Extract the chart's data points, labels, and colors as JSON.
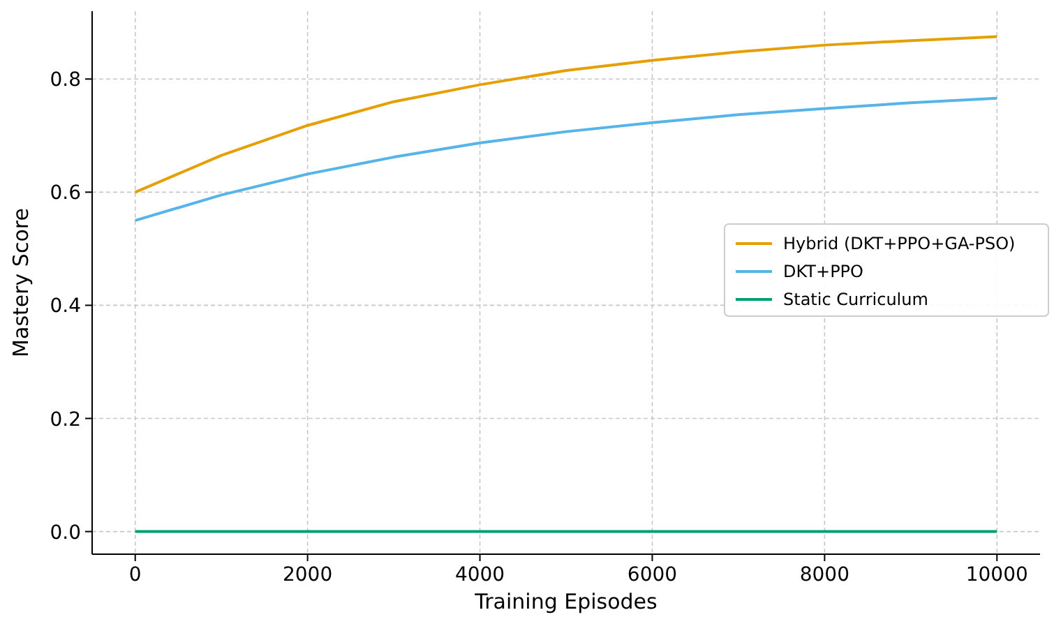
{
  "chart_data": {
    "type": "line",
    "xlabel": "Training Episodes",
    "ylabel": "Mastery Score",
    "x": [
      0,
      1000,
      2000,
      3000,
      4000,
      5000,
      6000,
      7000,
      8000,
      9000,
      10000
    ],
    "series": [
      {
        "name": "Hybrid (DKT+PPO+GA-PSO)",
        "color": "#e69f00",
        "values": [
          0.6,
          0.665,
          0.718,
          0.76,
          0.79,
          0.815,
          0.833,
          0.848,
          0.86,
          0.868,
          0.875
        ]
      },
      {
        "name": "DKT+PPO",
        "color": "#56b4e9",
        "values": [
          0.55,
          0.595,
          0.632,
          0.662,
          0.687,
          0.707,
          0.723,
          0.737,
          0.748,
          0.758,
          0.766
        ]
      },
      {
        "name": "Static Curriculum",
        "color": "#009e73",
        "values": [
          0,
          0,
          0,
          0,
          0,
          0,
          0,
          0,
          0,
          0,
          0
        ]
      }
    ],
    "xlim": [
      -500,
      10500
    ],
    "ylim": [
      -0.04,
      0.92
    ],
    "xticks": [
      0,
      2000,
      4000,
      6000,
      8000,
      10000
    ],
    "yticks": [
      {
        "value": 0,
        "label": "0.0"
      },
      {
        "value": 0.2,
        "label": "0.2"
      },
      {
        "value": 0.4,
        "label": "0.4"
      },
      {
        "value": 0.6,
        "label": "0.6"
      },
      {
        "value": 0.8,
        "label": "0.8"
      }
    ],
    "grid": true,
    "legend": "right",
    "marker": "none",
    "line_style": "solid"
  }
}
